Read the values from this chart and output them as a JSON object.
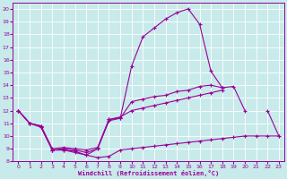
{
  "xlabel": "Windchill (Refroidissement éolien,°C)",
  "bg_color": "#c8eaea",
  "line_color": "#990099",
  "grid_color": "#b8d8d8",
  "xlim": [
    -0.5,
    23.5
  ],
  "ylim": [
    8,
    20.5
  ],
  "xticks": [
    0,
    1,
    2,
    3,
    4,
    5,
    6,
    7,
    8,
    9,
    10,
    11,
    12,
    13,
    14,
    15,
    16,
    17,
    18,
    19,
    20,
    21,
    22,
    23
  ],
  "yticks": [
    8,
    9,
    10,
    11,
    12,
    13,
    14,
    15,
    16,
    17,
    18,
    19,
    20
  ],
  "series": [
    {
      "x": [
        0,
        1,
        2,
        3,
        4,
        5,
        6,
        7,
        8,
        9,
        10,
        11,
        12,
        13,
        14,
        15,
        16,
        17,
        18,
        19,
        20
      ],
      "y": [
        12,
        11,
        10.7,
        8.9,
        8.9,
        8.8,
        8.5,
        9.0,
        11.3,
        11.4,
        15.5,
        17.8,
        18.5,
        19.2,
        19.7,
        20.0,
        18.8,
        15.1,
        13.8,
        null,
        null
      ]
    },
    {
      "x": [
        0,
        1,
        2,
        3,
        4,
        5,
        6,
        7,
        8,
        9,
        10,
        11,
        12,
        13,
        14,
        15,
        16,
        17,
        18,
        19,
        20,
        21
      ],
      "y": [
        12,
        11,
        10.8,
        8.9,
        9.0,
        8.9,
        8.7,
        9.0,
        11.2,
        11.4,
        12.7,
        12.9,
        13.1,
        13.2,
        13.5,
        13.6,
        13.9,
        14.0,
        13.8,
        13.9,
        12.0,
        null
      ]
    },
    {
      "x": [
        0,
        1,
        2,
        3,
        4,
        5,
        6,
        7,
        8,
        9,
        10,
        11,
        12,
        13,
        14,
        15,
        16,
        17,
        18,
        19,
        20,
        21,
        22,
        23
      ],
      "y": [
        12,
        11,
        10.8,
        9.0,
        9.1,
        9.0,
        8.9,
        9.1,
        11.3,
        11.5,
        12.0,
        12.2,
        12.4,
        12.6,
        12.8,
        13.0,
        13.2,
        13.4,
        13.6,
        null,
        null,
        null,
        12.0,
        10.0
      ]
    },
    {
      "x": [
        0,
        1,
        2,
        3,
        4,
        5,
        6,
        7,
        8,
        9,
        10,
        11,
        12,
        13,
        14,
        15,
        16,
        17,
        18,
        19,
        20,
        21,
        22,
        23
      ],
      "y": [
        12,
        11,
        10.7,
        8.9,
        8.9,
        8.7,
        8.5,
        8.3,
        8.4,
        8.9,
        9.0,
        9.1,
        9.2,
        9.3,
        9.4,
        9.5,
        9.6,
        9.7,
        9.8,
        9.9,
        10.0,
        10.0,
        10.0,
        10.0
      ]
    }
  ]
}
